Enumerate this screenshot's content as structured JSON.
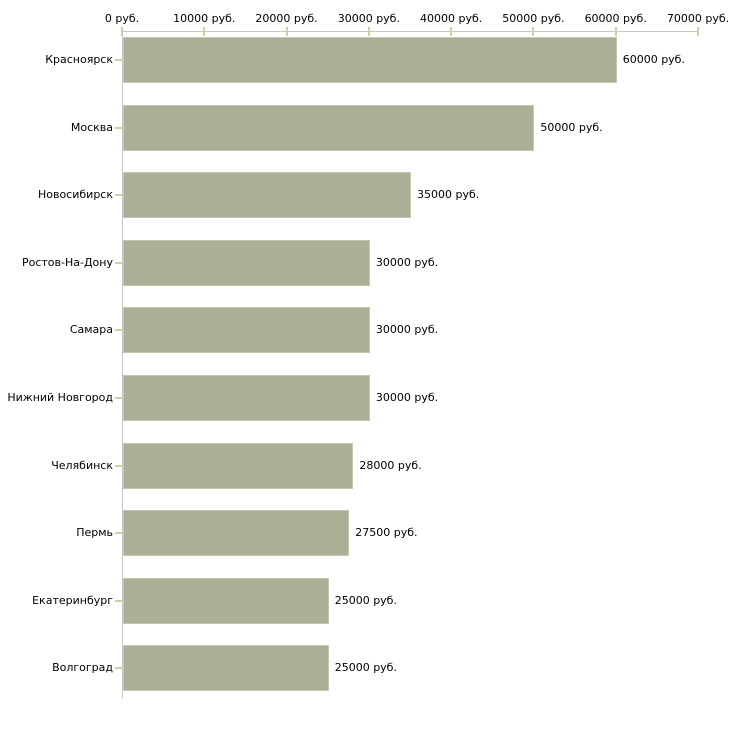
{
  "colors": {
    "bar_fill": "#aab095",
    "bar_border": "#c3c8ae",
    "axis_line": "#c7c7c7",
    "tick_mark": "#cfcf9f",
    "text": "#000000",
    "background": "#ffffff"
  },
  "chart_data": {
    "type": "bar",
    "orientation": "horizontal",
    "categories": [
      "Красноярск",
      "Москва",
      "Новосибирск",
      "Ростов-На-Дону",
      "Самара",
      "Нижний Новгород",
      "Челябинск",
      "Пермь",
      "Екатеринбург",
      "Волгоград"
    ],
    "values": [
      60000,
      50000,
      35000,
      30000,
      30000,
      30000,
      28000,
      27500,
      25000,
      25000
    ],
    "value_labels": [
      "60000 руб.",
      "50000 руб.",
      "35000 руб.",
      "30000 руб.",
      "30000 руб.",
      "30000 руб.",
      "28000 руб.",
      "27500 руб.",
      "25000 руб.",
      "25000 руб."
    ],
    "x_tick_values": [
      0,
      10000,
      20000,
      30000,
      40000,
      50000,
      60000,
      70000
    ],
    "x_tick_labels": [
      "0 руб.",
      "10000 руб.",
      "20000 руб.",
      "30000 руб.",
      "40000 руб.",
      "50000 руб.",
      "60000 руб.",
      "70000 руб."
    ],
    "xlim": [
      0,
      70000
    ],
    "unit": "руб.",
    "grid": false,
    "legend": false,
    "axis_position": "top"
  }
}
